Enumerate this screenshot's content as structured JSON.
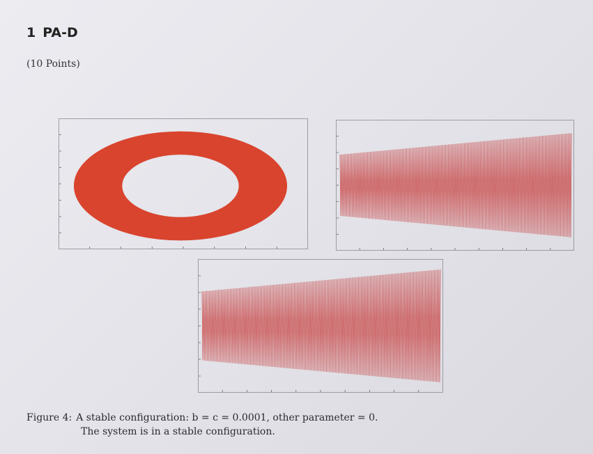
{
  "section": {
    "number": "1",
    "title": "PA-D",
    "points": "(10 Points)"
  },
  "caption": {
    "label": "Figure 4:",
    "text": "A stable configuration: b = c = 0.0001, other parameter = 0.",
    "line2": "The system is in a stable configuration."
  },
  "colors": {
    "ring": "#d9442e",
    "signal": "#c94a4a"
  },
  "chart_data": [
    {
      "type": "scatter",
      "description_shape": "ring",
      "title": "",
      "xlabel": "",
      "ylabel": "",
      "ring": {
        "outer_rx": 1.8,
        "outer_ry": 1.0,
        "inner_rx": 1.1,
        "inner_ry": 0.55
      },
      "xlim": [
        -2,
        2
      ],
      "ylim": [
        -1.5,
        1.5
      ]
    },
    {
      "type": "line",
      "title": "",
      "xlabel": "",
      "ylabel": "",
      "envelope_start": 0.5,
      "envelope_end": 0.85,
      "cycles": 160
    },
    {
      "type": "line",
      "title": "",
      "xlabel": "",
      "ylabel": "",
      "envelope_start": 0.55,
      "envelope_end": 0.9,
      "cycles": 160
    }
  ]
}
